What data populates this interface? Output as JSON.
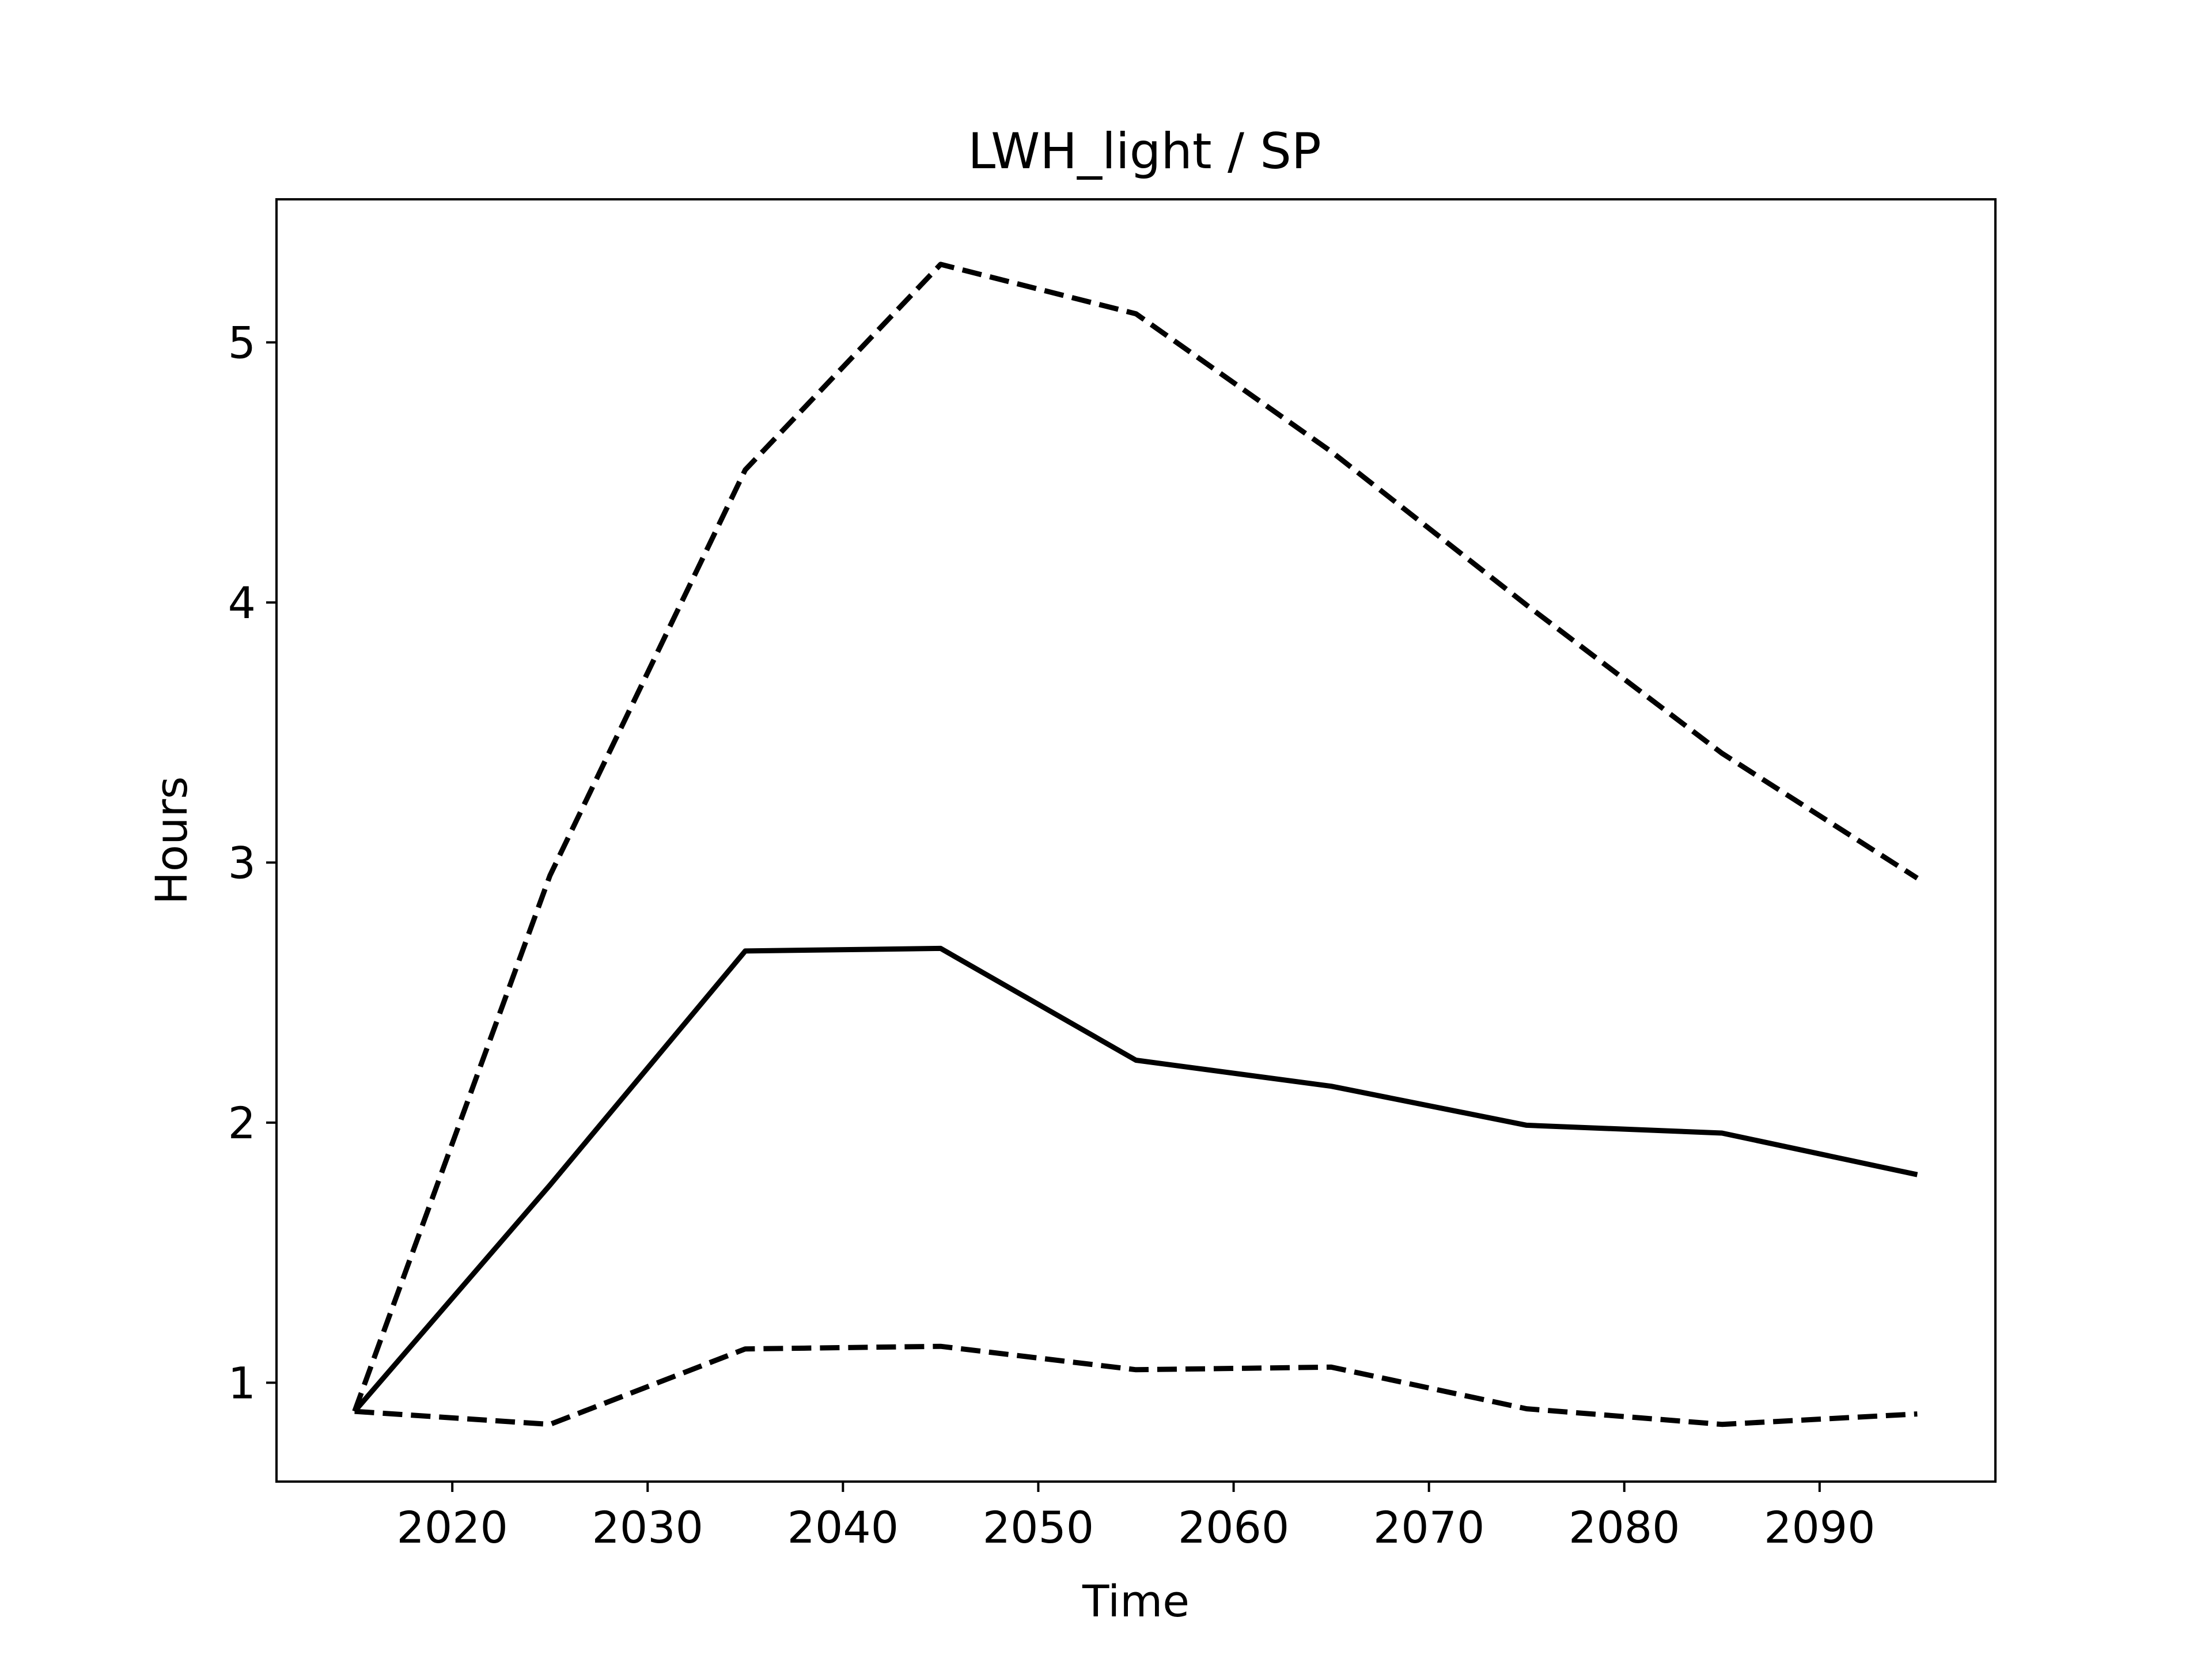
{
  "chart_data": {
    "type": "line",
    "title": "LWH_light / SP",
    "xlabel": "Time",
    "ylabel": "Hours",
    "xlim": [
      2011,
      2099
    ],
    "ylim": [
      0.62,
      5.55
    ],
    "xticks": [
      2020,
      2030,
      2040,
      2050,
      2060,
      2070,
      2080,
      2090
    ],
    "yticks": [
      1,
      2,
      3,
      4,
      5
    ],
    "grid": false,
    "legend": "none",
    "x": [
      2015,
      2025,
      2035,
      2045,
      2055,
      2065,
      2075,
      2085,
      2095
    ],
    "series": [
      {
        "style": "dashed",
        "color": "#000000",
        "values": [
          0.89,
          2.95,
          4.51,
          5.3,
          5.11,
          4.58,
          3.99,
          3.42,
          2.94
        ]
      },
      {
        "style": "solid",
        "color": "#000000",
        "values": [
          0.89,
          1.76,
          2.66,
          2.67,
          2.24,
          2.14,
          1.99,
          1.96,
          1.8
        ]
      },
      {
        "style": "dashed",
        "color": "#000000",
        "values": [
          0.89,
          0.84,
          1.13,
          1.14,
          1.05,
          1.06,
          0.9,
          0.84,
          0.88
        ]
      }
    ]
  }
}
